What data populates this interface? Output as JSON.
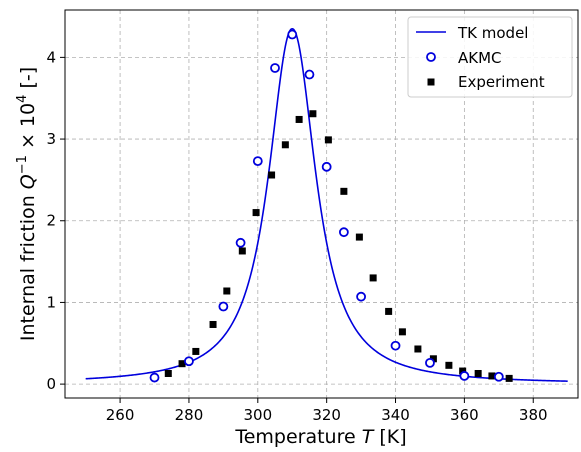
{
  "chart_data": {
    "type": "line",
    "title": "",
    "xlabel_prefix": "Temperature ",
    "xlabel_var": "T",
    "xlabel_suffix": " [K]",
    "ylabel_prefix": "Internal friction ",
    "ylabel_var": "Q",
    "ylabel_sup1": "−1",
    "ylabel_mid": " × 10",
    "ylabel_sup2": "4",
    "ylabel_suffix": " [-]",
    "xlim": [
      244,
      393
    ],
    "ylim": [
      -0.17,
      4.58
    ],
    "xticks": [
      260,
      280,
      300,
      320,
      340,
      360,
      380
    ],
    "yticks": [
      0,
      1,
      2,
      3,
      4
    ],
    "grid": true,
    "legend_position": "top-right",
    "legend": [
      "TK model",
      "AKMC",
      "Experiment"
    ],
    "colors": {
      "model": "#0000dd",
      "akmc": "#0000dd",
      "experiment": "#000000",
      "grid": "#b0b0b0"
    },
    "series": [
      {
        "name": "TK model",
        "kind": "line",
        "peak_x": 310,
        "peak_y": 4.35,
        "x_range": [
          250,
          390
        ],
        "x": [
          250,
          255,
          260,
          265,
          270,
          275,
          280,
          285,
          290,
          293,
          296,
          299,
          302,
          305,
          308,
          310,
          312,
          315,
          318,
          321,
          324,
          327,
          330,
          335,
          340,
          345,
          350,
          355,
          360,
          370,
          380,
          390
        ],
        "y": [
          0.01,
          0.02,
          0.03,
          0.05,
          0.09,
          0.16,
          0.3,
          0.55,
          1.0,
          1.45,
          1.98,
          2.62,
          3.32,
          3.9,
          4.28,
          4.35,
          4.28,
          3.9,
          3.3,
          2.62,
          2.0,
          1.5,
          1.08,
          0.6,
          0.33,
          0.19,
          0.11,
          0.07,
          0.05,
          0.025,
          0.015,
          0.01
        ]
      },
      {
        "name": "AKMC",
        "kind": "scatter-open-circle",
        "x": [
          270,
          280,
          290,
          295,
          300,
          305,
          310,
          315,
          320,
          325,
          330,
          340,
          350,
          360,
          370
        ],
        "y": [
          0.08,
          0.28,
          0.95,
          1.73,
          2.73,
          3.87,
          4.28,
          3.79,
          2.66,
          1.86,
          1.07,
          0.47,
          0.26,
          0.1,
          0.09
        ]
      },
      {
        "name": "Experiment",
        "kind": "scatter-square",
        "x": [
          274,
          278,
          282,
          287,
          291,
          295.5,
          299.5,
          304,
          308,
          312,
          316,
          320.5,
          325,
          329.5,
          333.5,
          338,
          342,
          346.5,
          351,
          355.5,
          359.5,
          364,
          368,
          373
        ],
        "y": [
          0.13,
          0.25,
          0.4,
          0.73,
          1.14,
          1.63,
          2.1,
          2.56,
          2.93,
          3.24,
          3.31,
          2.99,
          2.36,
          1.8,
          1.3,
          0.89,
          0.64,
          0.43,
          0.31,
          0.23,
          0.16,
          0.13,
          0.1,
          0.07
        ]
      }
    ]
  }
}
